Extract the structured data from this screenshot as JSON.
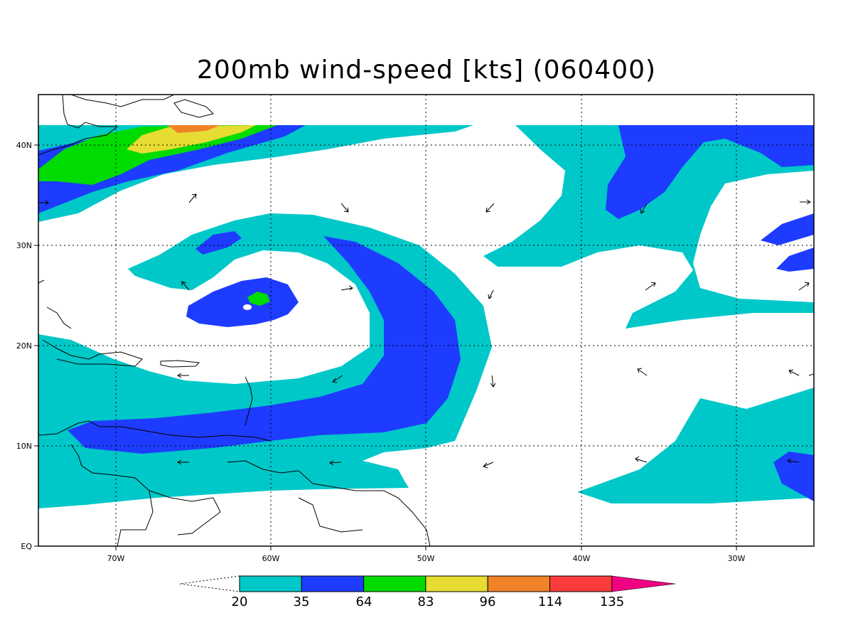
{
  "title": "200mb wind-speed [kts] (060400)",
  "axes": {
    "x_ticks": [
      "70W",
      "60W",
      "50W",
      "40W",
      "30W"
    ],
    "y_ticks": [
      "40N",
      "30N",
      "20N",
      "10N",
      "EQ"
    ]
  },
  "colorbar": {
    "labels": [
      "20",
      "35",
      "64",
      "83",
      "96",
      "114",
      "135"
    ],
    "colors": [
      "#00c8c8",
      "#1e3cff",
      "#00dc00",
      "#e6dc32",
      "#f08228",
      "#fa3c3c",
      "#f00082"
    ]
  },
  "colors": {
    "c20": "#00c8c8",
    "c35": "#1e3cff",
    "c64": "#00dc00",
    "c83": "#e6dc32",
    "c96": "#f08228"
  }
}
